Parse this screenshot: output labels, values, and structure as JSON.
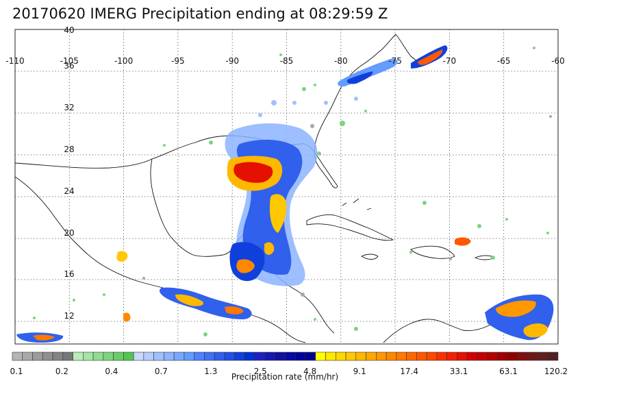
{
  "title": "20170620 IMERG Precipitation ending at 08:29:59 Z",
  "map": {
    "lon_ticks": [
      "-110",
      "-105",
      "-100",
      "-95",
      "-90",
      "-85",
      "-80",
      "-75",
      "-70",
      "-65",
      "-60"
    ],
    "lat_ticks": [
      "40",
      "36",
      "32",
      "28",
      "24",
      "20",
      "16",
      "12"
    ]
  },
  "colorbar": {
    "title": "Precipitation rate (mm/hr)",
    "tick_labels": [
      "0.1",
      "0.2",
      "0.4",
      "0.7",
      "1.3",
      "2.5",
      "4.8",
      "9.1",
      "17.4",
      "33.1",
      "63.1",
      "120.2"
    ],
    "colors": [
      "#b4b4b4",
      "#a8a8a8",
      "#9c9c9c",
      "#909090",
      "#848484",
      "#787878",
      "#b8ecb8",
      "#a4e4a4",
      "#90dc90",
      "#7cd47c",
      "#68cc68",
      "#54c454",
      "#c8d8ff",
      "#b4ccff",
      "#a0c0ff",
      "#8cb4ff",
      "#78a8ff",
      "#649cff",
      "#5080ff",
      "#4070f4",
      "#3060ec",
      "#2050e4",
      "#1040dc",
      "#0030d4",
      "#2020c0",
      "#1818b0",
      "#1010a0",
      "#0808a0",
      "#00009c",
      "#000090",
      "#ffff00",
      "#ffe800",
      "#ffd800",
      "#ffc800",
      "#ffb800",
      "#ffa800",
      "#ff9800",
      "#ff8800",
      "#ff7800",
      "#ff6800",
      "#ff5800",
      "#ff4800",
      "#ff3000",
      "#f42000",
      "#e41000",
      "#d40000",
      "#c40000",
      "#b40000",
      "#a00000",
      "#900000",
      "#801010",
      "#701818",
      "#602020",
      "#502020"
    ]
  }
}
